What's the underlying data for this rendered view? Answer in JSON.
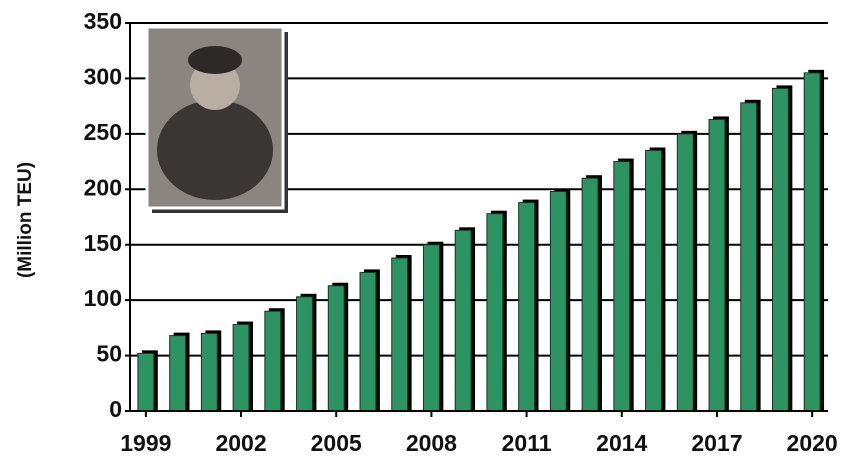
{
  "chart_data": {
    "type": "bar",
    "y_axis_label": "(Million TEU)",
    "categories": [
      "1999",
      null,
      null,
      "2002",
      null,
      null,
      "2005",
      null,
      null,
      "2008",
      null,
      null,
      "2011",
      null,
      null,
      "2014",
      null,
      null,
      "2017",
      null,
      null,
      "2020"
    ],
    "values": [
      52,
      68,
      70,
      78,
      90,
      103,
      113,
      125,
      138,
      150,
      163,
      178,
      188,
      198,
      210,
      225,
      235,
      250,
      263,
      278,
      291,
      305
    ],
    "color": "#2b9462",
    "ylim": [
      0,
      350
    ],
    "yticks": [
      0,
      50,
      100,
      150,
      200,
      250,
      300,
      350
    ],
    "grid": true
  }
}
